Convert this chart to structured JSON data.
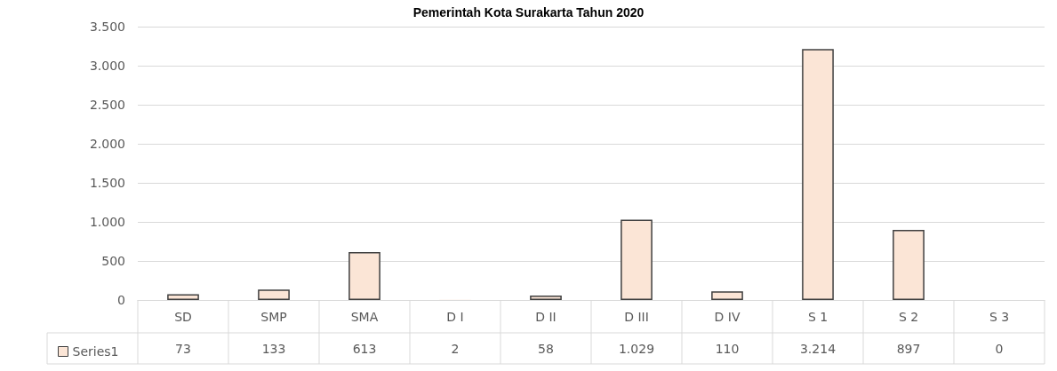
{
  "chart_data": {
    "type": "bar",
    "title": "Pemerintah Kota Surakarta Tahun 2020",
    "categories": [
      "SD",
      "SMP",
      "SMA",
      "D I",
      "D II",
      "D III",
      "D IV",
      "S 1",
      "S 2",
      "S 3"
    ],
    "series": [
      {
        "name": "Series1",
        "color": "#fbe5d6",
        "values": [
          73,
          133,
          613,
          2,
          58,
          1029,
          110,
          3214,
          897,
          0
        ],
        "value_labels": [
          "73",
          "133",
          "613",
          "2",
          "58",
          "1.029",
          "110",
          "3.214",
          "897",
          "0"
        ]
      }
    ],
    "ylim": [
      0,
      3500
    ],
    "yticks": [
      0,
      500,
      {
        "value": 1000,
        "label": "1.000"
      },
      {
        "value": 1500,
        "label": "1.500"
      },
      {
        "value": 2000,
        "label": "2.000"
      },
      {
        "value": 2500,
        "label": "2.500"
      },
      {
        "value": 3000,
        "label": "3.000"
      },
      {
        "value": 3500,
        "label": "3.500"
      }
    ],
    "grid": "y",
    "legend": "bottom left"
  }
}
